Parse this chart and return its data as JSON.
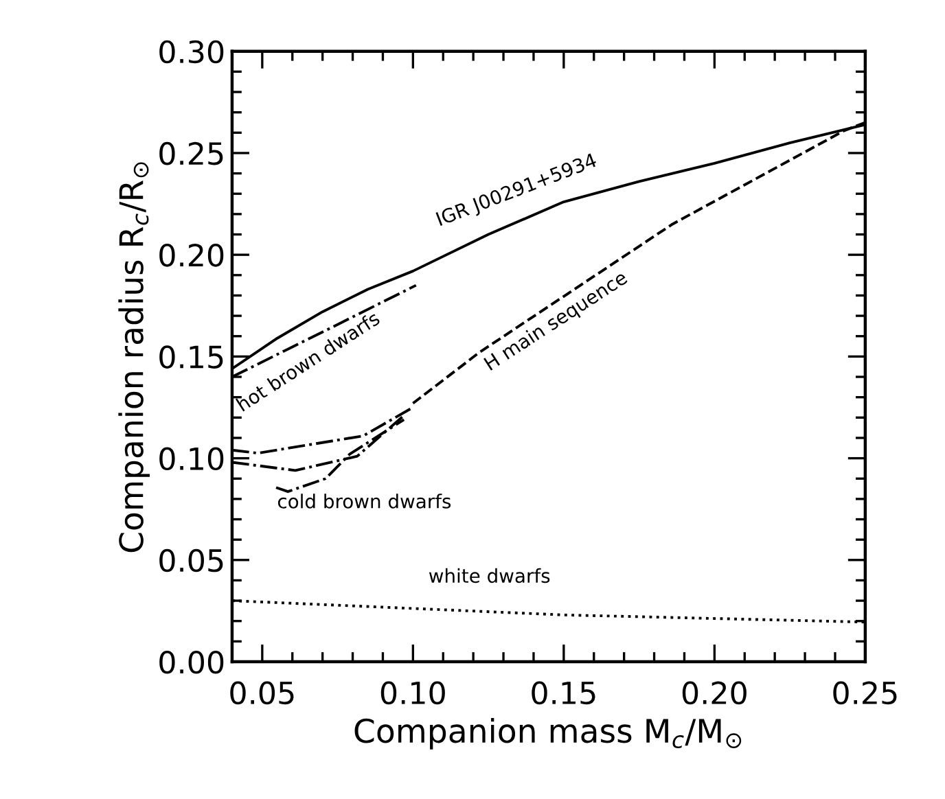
{
  "chart_data": {
    "type": "line",
    "xlabel": "Companion mass M$_{c}$/M$_{⊙}$",
    "ylabel": "Companion radius R$_{c}$/R$_{⊙}$",
    "xlim": [
      0.04,
      0.25
    ],
    "ylim": [
      0.0,
      0.3
    ],
    "xticks": [
      {
        "value": 0.05,
        "label": "0.05"
      },
      {
        "value": 0.1,
        "label": "0.10"
      },
      {
        "value": 0.15,
        "label": "0.15"
      },
      {
        "value": 0.2,
        "label": "0.20"
      },
      {
        "value": 0.25,
        "label": "0.25"
      }
    ],
    "yticks": [
      {
        "value": 0.0,
        "label": "0.00"
      },
      {
        "value": 0.05,
        "label": "0.05"
      },
      {
        "value": 0.1,
        "label": "0.10"
      },
      {
        "value": 0.15,
        "label": "0.15"
      },
      {
        "value": 0.2,
        "label": "0.20"
      },
      {
        "value": 0.25,
        "label": "0.25"
      },
      {
        "value": 0.3,
        "label": "0.30"
      }
    ],
    "grid": false,
    "marker": "none",
    "series": [
      {
        "color": "#000000",
        "line_style": "solid",
        "x": [
          0.04,
          0.055,
          0.07,
          0.085,
          0.1,
          0.125,
          0.15,
          0.175,
          0.2,
          0.225,
          0.25
        ],
        "values": [
          0.144,
          0.159,
          0.172,
          0.183,
          0.192,
          0.21,
          0.226,
          0.236,
          0.245,
          0.255,
          0.264
        ]
      },
      {
        "color": "#000000",
        "line_style": "dashed",
        "x": [
          0.1,
          0.122,
          0.186,
          0.243,
          0.25
        ],
        "values": [
          0.127,
          0.152,
          0.215,
          0.261,
          0.265
        ]
      },
      {
        "color": "#000000",
        "line_style": "dashdot",
        "x": [
          0.04,
          0.074,
          0.101
        ],
        "values": [
          0.14,
          0.165,
          0.185
        ]
      },
      {
        "color": "#000000",
        "line_style": "dashdot",
        "x": [
          0.04,
          0.0485,
          0.0835,
          0.1
        ],
        "values": [
          0.104,
          0.1025,
          0.111,
          0.125
        ]
      },
      {
        "color": "#000000",
        "line_style": "dashdot",
        "x": [
          0.04,
          0.061,
          0.0815,
          0.097
        ],
        "values": [
          0.098,
          0.094,
          0.101,
          0.121
        ]
      },
      {
        "color": "#000000",
        "line_style": "dashdot",
        "x": [
          0.0546,
          0.0585,
          0.071,
          0.079,
          0.097
        ],
        "values": [
          0.0856,
          0.0836,
          0.09,
          0.102,
          0.119
        ]
      },
      {
        "color": "#000000",
        "line_style": "dotted",
        "x": [
          0.04,
          0.15,
          0.25
        ],
        "values": [
          0.03,
          0.023,
          0.0195
        ]
      }
    ],
    "annotations": [
      "IGR J00291+5934",
      "hot brown dwarfs",
      "H main sequence",
      "cold brown dwarfs",
      "white dwarfs"
    ]
  }
}
